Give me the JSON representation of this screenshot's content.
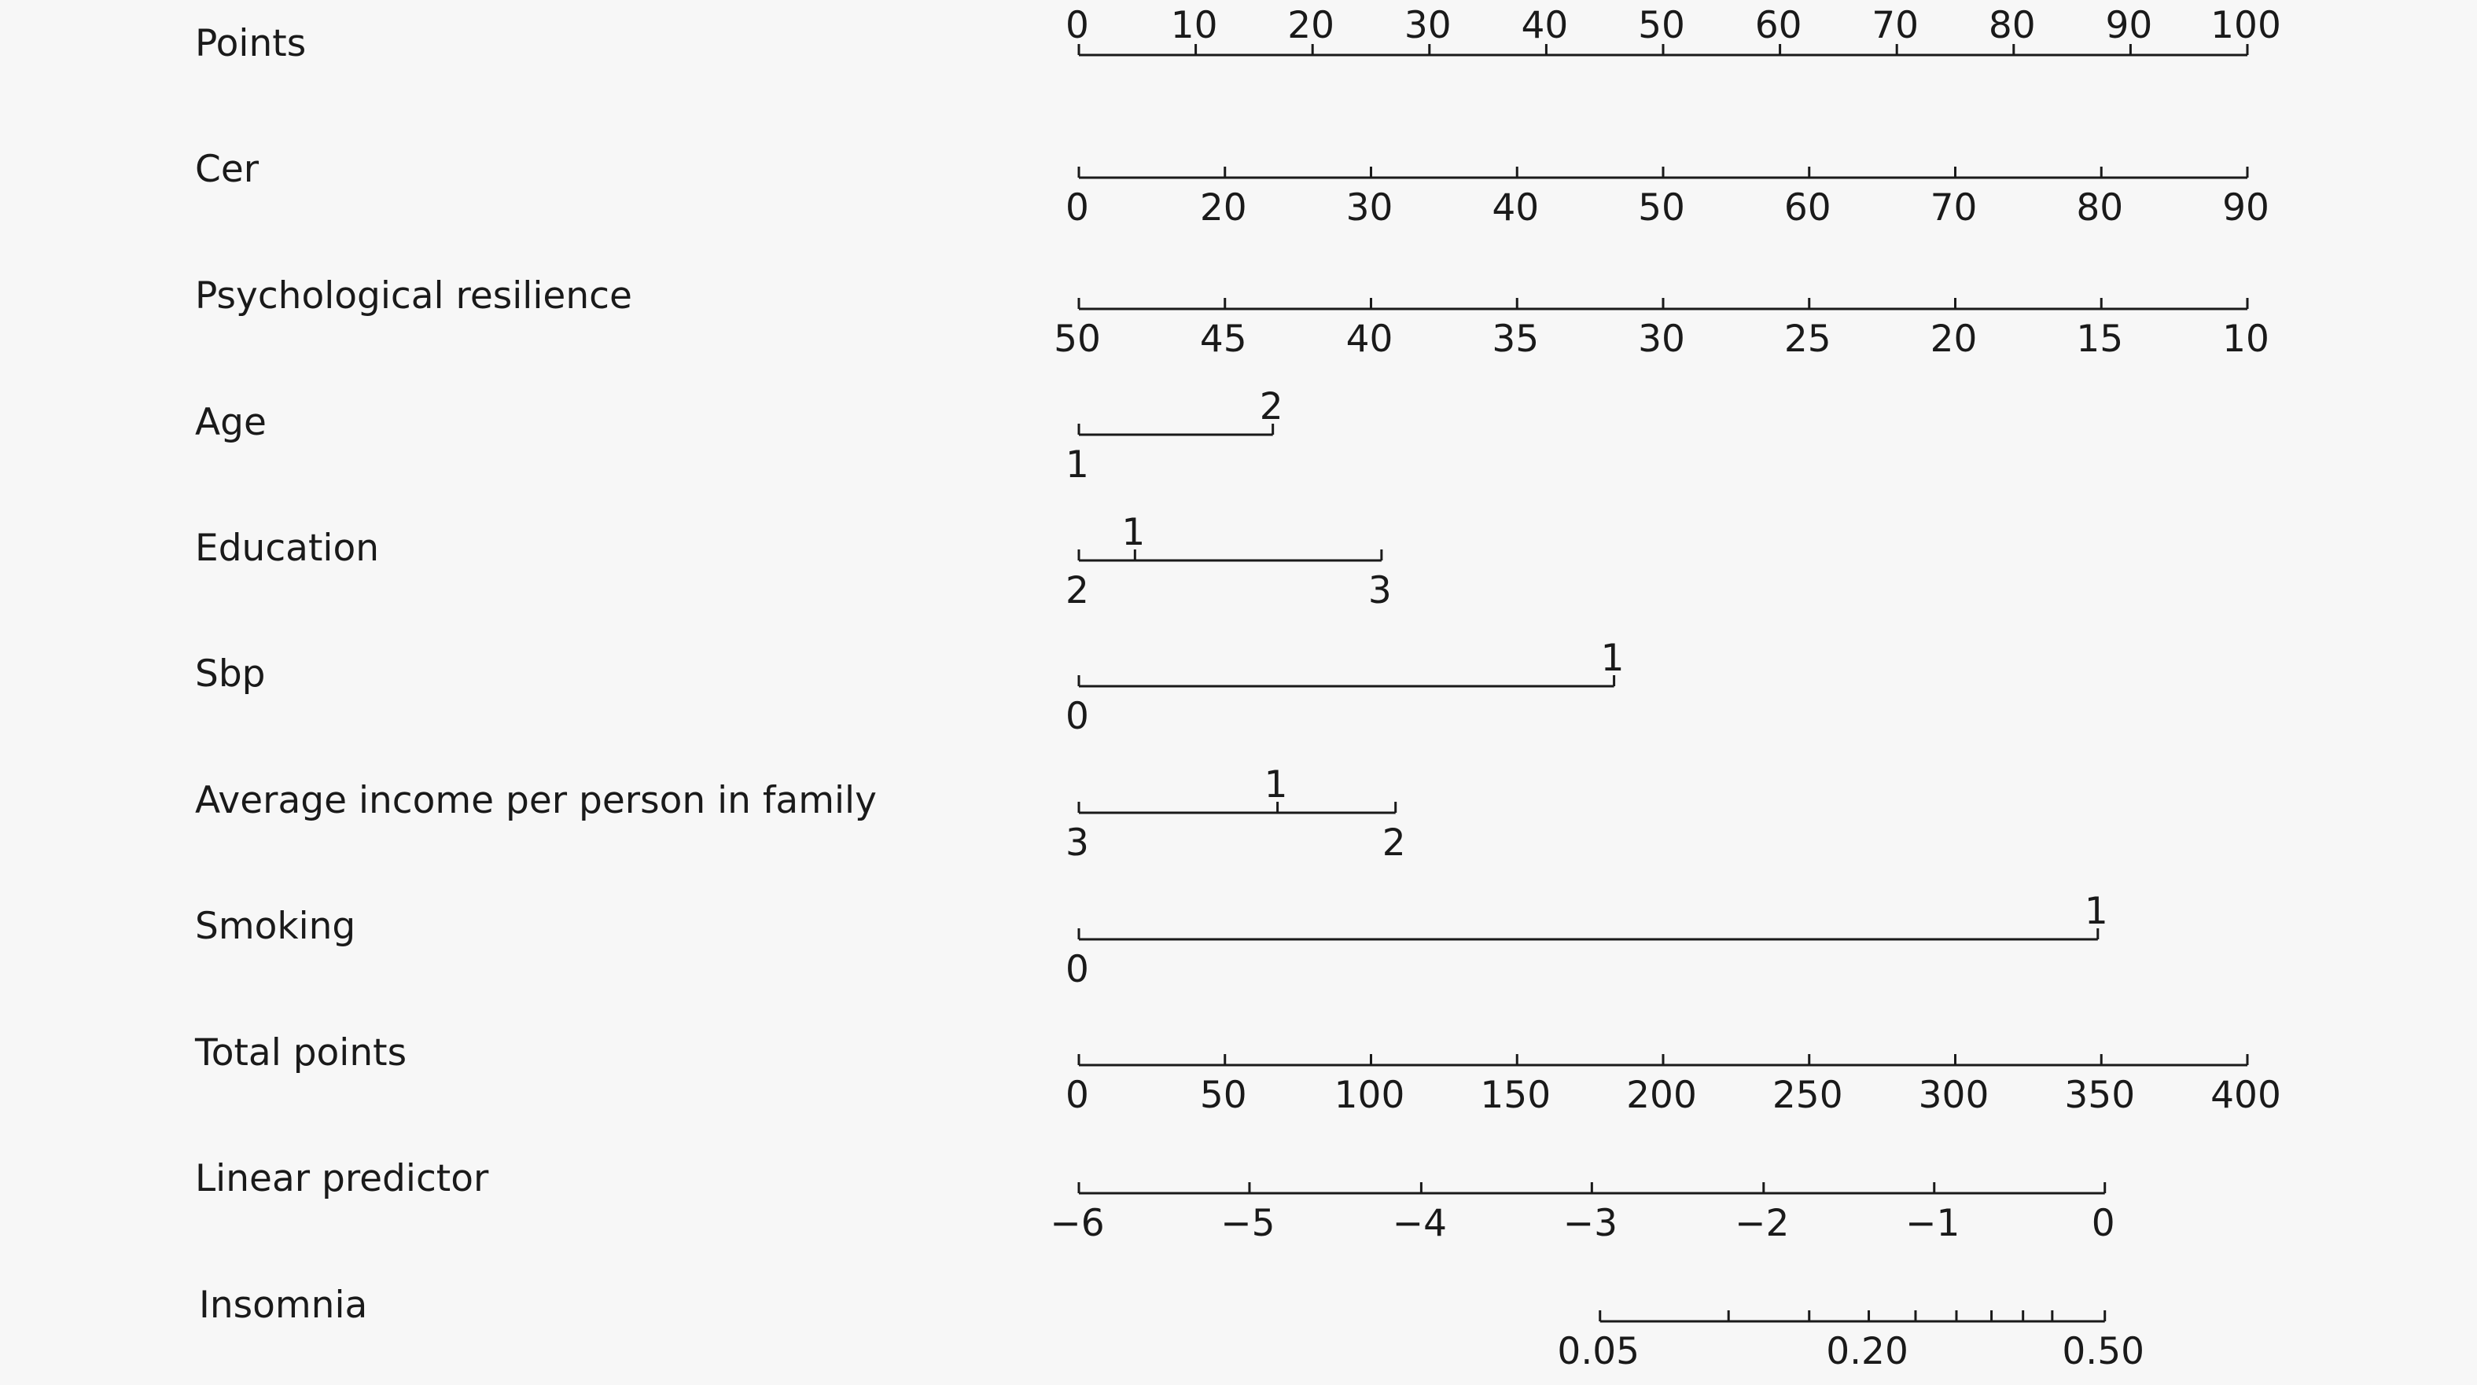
{
  "chart_data": {
    "type": "nomogram",
    "rows": [
      {
        "label": "Points",
        "ticks": [
          {
            "v": 0,
            "t": "0"
          },
          {
            "v": 10,
            "t": "10"
          },
          {
            "v": 20,
            "t": "20"
          },
          {
            "v": 30,
            "t": "30"
          },
          {
            "v": 40,
            "t": "40"
          },
          {
            "v": 50,
            "t": "50"
          },
          {
            "v": 60,
            "t": "60"
          },
          {
            "v": 70,
            "t": "70"
          },
          {
            "v": 80,
            "t": "80"
          },
          {
            "v": 90,
            "t": "90"
          },
          {
            "v": 100,
            "t": "100"
          }
        ]
      },
      {
        "label": "Cer",
        "ticks": [
          {
            "v": 0,
            "t": "0"
          },
          {
            "v": 12.5,
            "t": "20"
          },
          {
            "v": 25,
            "t": "30"
          },
          {
            "v": 37.5,
            "t": "40"
          },
          {
            "v": 50,
            "t": "50"
          },
          {
            "v": 62.5,
            "t": "60"
          },
          {
            "v": 75,
            "t": "70"
          },
          {
            "v": 87.5,
            "t": "80"
          },
          {
            "v": 100,
            "t": "90"
          }
        ]
      },
      {
        "label": "Psychological resilience",
        "ticks": [
          {
            "v": 0,
            "t": "50"
          },
          {
            "v": 12.5,
            "t": "45"
          },
          {
            "v": 25,
            "t": "40"
          },
          {
            "v": 37.5,
            "t": "35"
          },
          {
            "v": 50,
            "t": "30"
          },
          {
            "v": 62.5,
            "t": "25"
          },
          {
            "v": 75,
            "t": "20"
          },
          {
            "v": 87.5,
            "t": "15"
          },
          {
            "v": 100,
            "t": "10"
          }
        ]
      },
      {
        "label": "Age",
        "ticks": [
          {
            "v": 0,
            "t": "1",
            "pos": "below"
          },
          {
            "v": 16.6,
            "t": "2",
            "pos": "above"
          }
        ]
      },
      {
        "label": "Education",
        "ticks": [
          {
            "v": 0,
            "t": "2",
            "pos": "below"
          },
          {
            "v": 4.8,
            "t": "1",
            "pos": "above"
          },
          {
            "v": 25.9,
            "t": "3",
            "pos": "below"
          }
        ]
      },
      {
        "label": "Sbp",
        "ticks": [
          {
            "v": 0,
            "t": "0",
            "pos": "below"
          },
          {
            "v": 45.8,
            "t": "1",
            "pos": "above"
          }
        ]
      },
      {
        "label": "Average income per person in family",
        "ticks": [
          {
            "v": 0,
            "t": "3",
            "pos": "below"
          },
          {
            "v": 17.0,
            "t": "1",
            "pos": "above"
          },
          {
            "v": 27.1,
            "t": "2",
            "pos": "below"
          }
        ]
      },
      {
        "label": "Smoking",
        "ticks": [
          {
            "v": 0,
            "t": "0",
            "pos": "below"
          },
          {
            "v": 87.2,
            "t": "1",
            "pos": "above"
          }
        ]
      },
      {
        "label": "Total points",
        "ticks": [
          {
            "v": 0,
            "t": "0"
          },
          {
            "v": 12.5,
            "t": "50"
          },
          {
            "v": 25,
            "t": "100"
          },
          {
            "v": 37.5,
            "t": "150"
          },
          {
            "v": 50,
            "t": "200"
          },
          {
            "v": 62.5,
            "t": "250"
          },
          {
            "v": 75,
            "t": "300"
          },
          {
            "v": 87.5,
            "t": "350"
          },
          {
            "v": 100,
            "t": "400"
          }
        ]
      },
      {
        "label": "Linear predictor",
        "ticks": [
          {
            "v": 0,
            "t": "−6"
          },
          {
            "v": 14.6,
            "t": "−5"
          },
          {
            "v": 29.3,
            "t": "−4"
          },
          {
            "v": 43.9,
            "t": "−3"
          },
          {
            "v": 58.6,
            "t": "−2"
          },
          {
            "v": 73.2,
            "t": "−1"
          },
          {
            "v": 87.8,
            "t": "0"
          }
        ]
      },
      {
        "label": "Insomnia",
        "ticks": [
          {
            "v": 44.6,
            "t": "0.05"
          },
          {
            "v": 55.6,
            "t": ""
          },
          {
            "v": 62.5,
            "t": ""
          },
          {
            "v": 67.6,
            "t": "0.20"
          },
          {
            "v": 71.6,
            "t": ""
          },
          {
            "v": 75.1,
            "t": ""
          },
          {
            "v": 78.1,
            "t": ""
          },
          {
            "v": 80.8,
            "t": ""
          },
          {
            "v": 83.3,
            "t": ""
          },
          {
            "v": 87.8,
            "t": "0.50"
          }
        ]
      }
    ]
  }
}
